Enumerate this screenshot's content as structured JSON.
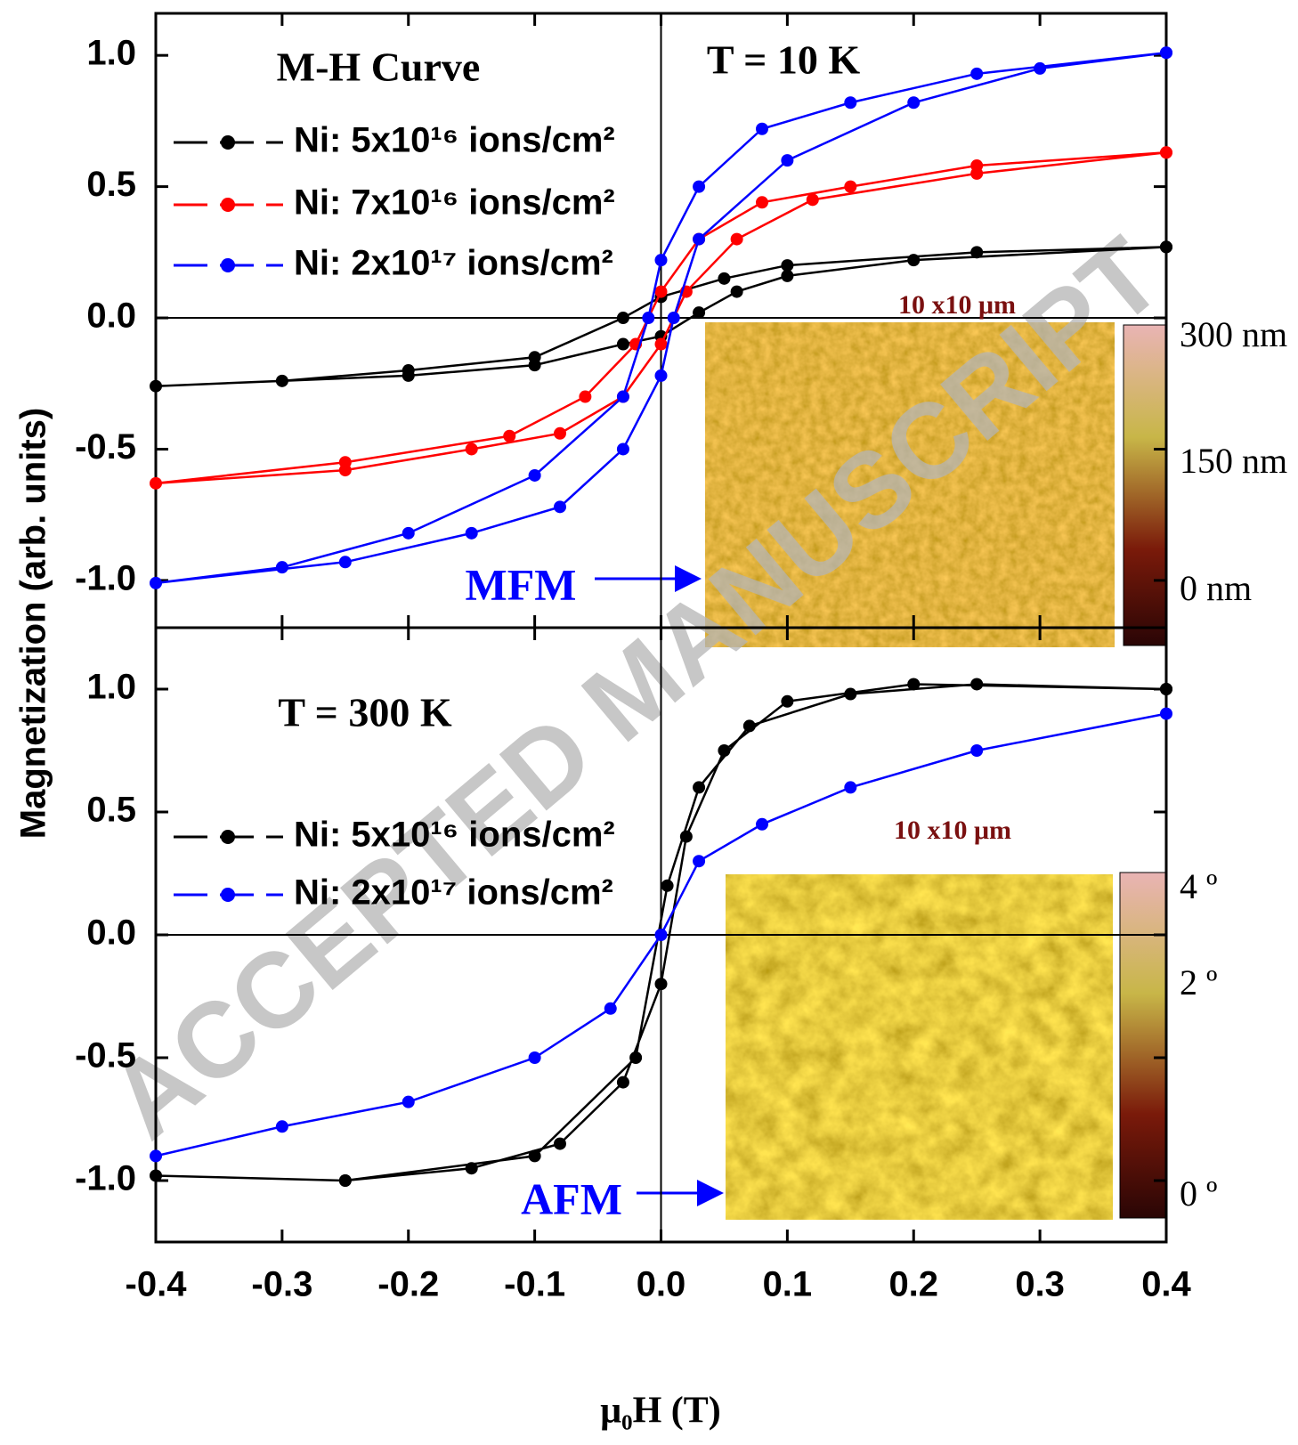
{
  "chart_data": [
    {
      "type": "line",
      "annotations": [
        "M-H Curve",
        "T = 10 K"
      ],
      "y_label": "Magnetization (arb. units)",
      "xlim": [
        -0.4,
        0.4
      ],
      "ylim": [
        -1.18,
        1.16
      ],
      "yticks": [
        {
          "value": -1.0,
          "label": "-1.0"
        },
        {
          "value": -0.5,
          "label": "-0.5"
        },
        {
          "value": 0.0,
          "label": "0.0"
        },
        {
          "value": 0.5,
          "label": "0.5"
        },
        {
          "value": 1.0,
          "label": "1.0"
        }
      ],
      "legend_position": "upper left",
      "series": [
        {
          "name": "Ni: 5x10¹⁶ ions/cm²",
          "color": "#000000",
          "x": [
            0.4,
            0.25,
            0.1,
            0.05,
            0.0,
            -0.03,
            -0.1,
            -0.2,
            -0.3,
            -0.4,
            -0.2,
            -0.1,
            -0.03,
            0.0,
            0.03,
            0.06,
            0.1,
            0.2,
            0.4
          ],
          "values": [
            0.27,
            0.25,
            0.2,
            0.15,
            0.08,
            0.0,
            -0.15,
            -0.2,
            -0.24,
            -0.26,
            -0.22,
            -0.18,
            -0.1,
            -0.07,
            0.02,
            0.1,
            0.16,
            0.22,
            0.27
          ]
        },
        {
          "name": "Ni: 7x10¹⁶ ions/cm²",
          "color": "#ff0000",
          "x": [
            0.4,
            0.25,
            0.15,
            0.08,
            0.03,
            0.0,
            -0.02,
            -0.06,
            -0.12,
            -0.25,
            -0.4,
            -0.25,
            -0.15,
            -0.08,
            -0.03,
            0.0,
            0.02,
            0.06,
            0.12,
            0.25,
            0.4
          ],
          "values": [
            0.63,
            0.58,
            0.5,
            0.44,
            0.3,
            0.1,
            -0.1,
            -0.3,
            -0.45,
            -0.55,
            -0.63,
            -0.58,
            -0.5,
            -0.44,
            -0.3,
            -0.1,
            0.1,
            0.3,
            0.45,
            0.55,
            0.63
          ]
        },
        {
          "name": "Ni: 2x10¹⁷ ions/cm²",
          "color": "#0000ff",
          "x": [
            0.4,
            0.25,
            0.15,
            0.08,
            0.03,
            0.0,
            -0.01,
            -0.03,
            -0.1,
            -0.2,
            -0.3,
            -0.4,
            -0.25,
            -0.15,
            -0.08,
            -0.03,
            0.0,
            0.01,
            0.03,
            0.1,
            0.2,
            0.3,
            0.4
          ],
          "values": [
            1.01,
            0.93,
            0.82,
            0.72,
            0.5,
            0.22,
            0.0,
            -0.3,
            -0.6,
            -0.82,
            -0.95,
            -1.01,
            -0.93,
            -0.82,
            -0.72,
            -0.5,
            -0.22,
            0.0,
            0.3,
            0.6,
            0.82,
            0.95,
            1.01
          ]
        }
      ],
      "inset": {
        "label": "10 x10 μm",
        "caption": "MFM",
        "colorbar_labels": [
          "300 nm",
          "150 nm",
          "0 nm"
        ]
      }
    },
    {
      "type": "line",
      "annotations": [
        "T = 300 K"
      ],
      "x_label": "μ₀H (T)",
      "xlim": [
        -0.4,
        0.4
      ],
      "xticks": [
        {
          "value": -0.4,
          "label": "-0.4"
        },
        {
          "value": -0.3,
          "label": "-0.3"
        },
        {
          "value": -0.2,
          "label": "-0.2"
        },
        {
          "value": -0.1,
          "label": "-0.1"
        },
        {
          "value": 0.0,
          "label": "0.0"
        },
        {
          "value": 0.1,
          "label": "0.1"
        },
        {
          "value": 0.2,
          "label": "0.2"
        },
        {
          "value": 0.3,
          "label": "0.3"
        },
        {
          "value": 0.4,
          "label": "0.4"
        }
      ],
      "ylim": [
        -1.25,
        1.25
      ],
      "yticks": [
        {
          "value": -1.0,
          "label": "-1.0"
        },
        {
          "value": -0.5,
          "label": "-0.5"
        },
        {
          "value": 0.0,
          "label": "0.0"
        },
        {
          "value": 0.5,
          "label": "0.5"
        },
        {
          "value": 1.0,
          "label": "1.0"
        }
      ],
      "legend_position": "center left",
      "series": [
        {
          "name": "Ni: 5x10¹⁶ ions/cm²",
          "color": "#000000",
          "x": [
            0.4,
            0.2,
            0.1,
            0.05,
            0.02,
            0.0,
            -0.03,
            -0.08,
            -0.15,
            -0.25,
            -0.4,
            -0.25,
            -0.1,
            -0.02,
            0.005,
            0.03,
            0.07,
            0.15,
            0.25,
            0.4
          ],
          "values": [
            1.0,
            1.02,
            0.95,
            0.75,
            0.4,
            -0.2,
            -0.6,
            -0.85,
            -0.95,
            -1.0,
            -0.98,
            -1.0,
            -0.9,
            -0.5,
            0.2,
            0.6,
            0.85,
            0.98,
            1.02,
            1.0
          ]
        },
        {
          "name": "Ni: 2x10¹⁷ ions/cm²",
          "color": "#0000ff",
          "x": [
            -0.4,
            -0.3,
            -0.2,
            -0.1,
            -0.04,
            0.0,
            0.03,
            0.08,
            0.15,
            0.25,
            0.4
          ],
          "values": [
            -0.9,
            -0.78,
            -0.68,
            -0.5,
            -0.3,
            0.0,
            0.3,
            0.45,
            0.6,
            0.75,
            0.9
          ]
        }
      ],
      "inset": {
        "label": "10 x10 μm",
        "caption": "AFM",
        "colorbar_labels": [
          "4 º",
          "2 º",
          "0 º"
        ]
      }
    }
  ],
  "watermark": "ACCEPTED MANUSCRIPT"
}
